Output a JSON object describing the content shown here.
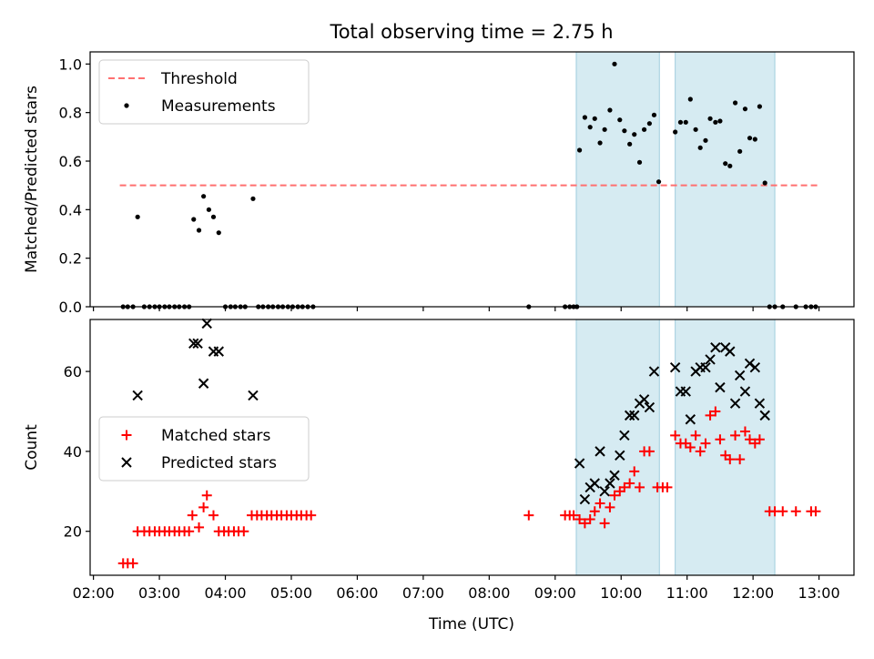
{
  "figure": {
    "title": "Total observing time = 2.75 h",
    "xlabel": "Time (UTC)",
    "xticks": [
      "02:00",
      "03:00",
      "04:00",
      "05:00",
      "06:00",
      "07:00",
      "08:00",
      "09:00",
      "10:00",
      "11:00",
      "12:00",
      "13:00"
    ]
  },
  "chart_data": [
    {
      "type": "scatter",
      "ylabel": "Matched/Predicted stars",
      "xlim": [
        1.95,
        13.53
      ],
      "ylim": [
        0,
        1.05
      ],
      "yticks": [
        "0.0",
        "0.2",
        "0.4",
        "0.6",
        "0.8",
        "1.0"
      ],
      "legend": "upper-left",
      "highlight_bands": [
        [
          9.32,
          10.58
        ],
        [
          10.82,
          12.33
        ]
      ],
      "threshold": {
        "name": "Threshold",
        "value": 0.5,
        "x_range": [
          2.4,
          12.98
        ],
        "color": "#ff7070",
        "style": "dashed"
      },
      "series": [
        {
          "name": "Measurements",
          "color": "#000000",
          "marker": "dot",
          "points": [
            [
              2.45,
              0
            ],
            [
              2.52,
              0
            ],
            [
              2.6,
              0
            ],
            [
              2.67,
              0.37
            ],
            [
              2.77,
              0
            ],
            [
              2.85,
              0
            ],
            [
              2.93,
              0
            ],
            [
              3.0,
              0
            ],
            [
              3.08,
              0
            ],
            [
              3.15,
              0
            ],
            [
              3.23,
              0
            ],
            [
              3.3,
              0
            ],
            [
              3.38,
              0
            ],
            [
              3.45,
              0
            ],
            [
              3.52,
              0.36
            ],
            [
              3.6,
              0.315
            ],
            [
              3.67,
              0.455
            ],
            [
              3.75,
              0.4
            ],
            [
              3.82,
              0.37
            ],
            [
              3.9,
              0.305
            ],
            [
              4.0,
              0
            ],
            [
              4.08,
              0
            ],
            [
              4.15,
              0
            ],
            [
              4.23,
              0
            ],
            [
              4.3,
              0
            ],
            [
              4.42,
              0.445
            ],
            [
              4.5,
              0
            ],
            [
              4.57,
              0
            ],
            [
              4.65,
              0
            ],
            [
              4.72,
              0
            ],
            [
              4.8,
              0
            ],
            [
              4.87,
              0
            ],
            [
              4.95,
              0
            ],
            [
              5.02,
              0
            ],
            [
              5.1,
              0
            ],
            [
              5.17,
              0
            ],
            [
              5.25,
              0
            ],
            [
              5.33,
              0
            ],
            [
              8.6,
              0
            ],
            [
              9.15,
              0
            ],
            [
              9.22,
              0
            ],
            [
              9.28,
              0
            ],
            [
              9.33,
              0
            ],
            [
              9.37,
              0.645
            ],
            [
              9.45,
              0.78
            ],
            [
              9.53,
              0.74
            ],
            [
              9.6,
              0.775
            ],
            [
              9.68,
              0.675
            ],
            [
              9.75,
              0.73
            ],
            [
              9.83,
              0.81
            ],
            [
              9.9,
              1.0
            ],
            [
              9.98,
              0.77
            ],
            [
              10.05,
              0.725
            ],
            [
              10.13,
              0.67
            ],
            [
              10.2,
              0.71
            ],
            [
              10.28,
              0.595
            ],
            [
              10.35,
              0.73
            ],
            [
              10.43,
              0.755
            ],
            [
              10.5,
              0.79
            ],
            [
              10.57,
              0.515
            ],
            [
              10.82,
              0.72
            ],
            [
              10.9,
              0.76
            ],
            [
              10.98,
              0.76
            ],
            [
              11.05,
              0.855
            ],
            [
              11.13,
              0.73
            ],
            [
              11.2,
              0.655
            ],
            [
              11.28,
              0.685
            ],
            [
              11.35,
              0.775
            ],
            [
              11.43,
              0.76
            ],
            [
              11.5,
              0.765
            ],
            [
              11.58,
              0.59
            ],
            [
              11.65,
              0.58
            ],
            [
              11.73,
              0.84
            ],
            [
              11.8,
              0.64
            ],
            [
              11.88,
              0.815
            ],
            [
              11.95,
              0.695
            ],
            [
              12.03,
              0.69
            ],
            [
              12.1,
              0.825
            ],
            [
              12.18,
              0.51
            ],
            [
              12.25,
              0
            ],
            [
              12.33,
              0
            ],
            [
              12.45,
              0
            ],
            [
              12.65,
              0
            ],
            [
              12.8,
              0
            ],
            [
              12.88,
              0
            ],
            [
              12.95,
              0
            ]
          ]
        }
      ]
    },
    {
      "type": "scatter",
      "ylabel": "Count",
      "xlim": [
        1.95,
        13.53
      ],
      "ylim": [
        9,
        73
      ],
      "yticks": [
        "20",
        "40",
        "60"
      ],
      "legend": "center-left",
      "highlight_bands": [
        [
          9.32,
          10.58
        ],
        [
          10.82,
          12.33
        ]
      ],
      "series": [
        {
          "name": "Matched stars",
          "color": "#ff0000",
          "marker": "plus",
          "points": [
            [
              2.45,
              12
            ],
            [
              2.52,
              12
            ],
            [
              2.6,
              12
            ],
            [
              2.67,
              20
            ],
            [
              2.77,
              20
            ],
            [
              2.85,
              20
            ],
            [
              2.93,
              20
            ],
            [
              3.0,
              20
            ],
            [
              3.08,
              20
            ],
            [
              3.15,
              20
            ],
            [
              3.23,
              20
            ],
            [
              3.3,
              20
            ],
            [
              3.38,
              20
            ],
            [
              3.45,
              20
            ],
            [
              3.5,
              24
            ],
            [
              3.6,
              21
            ],
            [
              3.67,
              26
            ],
            [
              3.72,
              29
            ],
            [
              3.82,
              24
            ],
            [
              3.9,
              20
            ],
            [
              3.98,
              20
            ],
            [
              4.05,
              20
            ],
            [
              4.13,
              20
            ],
            [
              4.2,
              20
            ],
            [
              4.28,
              20
            ],
            [
              4.4,
              24
            ],
            [
              4.48,
              24
            ],
            [
              4.55,
              24
            ],
            [
              4.63,
              24
            ],
            [
              4.7,
              24
            ],
            [
              4.78,
              24
            ],
            [
              4.85,
              24
            ],
            [
              4.93,
              24
            ],
            [
              5.0,
              24
            ],
            [
              5.08,
              24
            ],
            [
              5.15,
              24
            ],
            [
              5.23,
              24
            ],
            [
              5.3,
              24
            ],
            [
              8.6,
              24
            ],
            [
              9.15,
              24
            ],
            [
              9.22,
              24
            ],
            [
              9.28,
              24
            ],
            [
              9.37,
              23
            ],
            [
              9.45,
              22
            ],
            [
              9.53,
              23
            ],
            [
              9.6,
              25
            ],
            [
              9.68,
              27
            ],
            [
              9.75,
              22
            ],
            [
              9.83,
              26
            ],
            [
              9.9,
              29
            ],
            [
              9.98,
              30
            ],
            [
              10.05,
              31
            ],
            [
              10.13,
              32
            ],
            [
              10.2,
              35
            ],
            [
              10.28,
              31
            ],
            [
              10.35,
              40
            ],
            [
              10.43,
              40
            ],
            [
              10.55,
              31
            ],
            [
              10.63,
              31
            ],
            [
              10.7,
              31
            ],
            [
              10.82,
              44
            ],
            [
              10.9,
              42
            ],
            [
              10.98,
              42
            ],
            [
              11.05,
              41
            ],
            [
              11.13,
              44
            ],
            [
              11.2,
              40
            ],
            [
              11.28,
              42
            ],
            [
              11.35,
              49
            ],
            [
              11.43,
              50
            ],
            [
              11.5,
              43
            ],
            [
              11.58,
              39
            ],
            [
              11.65,
              38
            ],
            [
              11.73,
              44
            ],
            [
              11.8,
              38
            ],
            [
              11.88,
              45
            ],
            [
              11.95,
              43
            ],
            [
              12.03,
              42
            ],
            [
              12.1,
              43
            ],
            [
              12.25,
              25
            ],
            [
              12.33,
              25
            ],
            [
              12.45,
              25
            ],
            [
              12.65,
              25
            ],
            [
              12.88,
              25
            ],
            [
              12.95,
              25
            ]
          ]
        },
        {
          "name": "Predicted stars",
          "color": "#000000",
          "marker": "x",
          "points": [
            [
              2.67,
              54
            ],
            [
              3.52,
              67
            ],
            [
              3.58,
              67
            ],
            [
              3.67,
              57
            ],
            [
              3.72,
              72
            ],
            [
              3.82,
              65
            ],
            [
              3.9,
              65
            ],
            [
              4.42,
              54
            ],
            [
              9.37,
              37
            ],
            [
              9.45,
              28
            ],
            [
              9.53,
              31
            ],
            [
              9.6,
              32
            ],
            [
              9.68,
              40
            ],
            [
              9.75,
              30
            ],
            [
              9.83,
              32
            ],
            [
              9.9,
              34
            ],
            [
              9.98,
              39
            ],
            [
              10.05,
              44
            ],
            [
              10.13,
              49
            ],
            [
              10.2,
              49
            ],
            [
              10.28,
              52
            ],
            [
              10.35,
              53
            ],
            [
              10.43,
              51
            ],
            [
              10.5,
              60
            ],
            [
              10.82,
              61
            ],
            [
              10.9,
              55
            ],
            [
              10.98,
              55
            ],
            [
              11.05,
              48
            ],
            [
              11.13,
              60
            ],
            [
              11.2,
              61
            ],
            [
              11.28,
              61
            ],
            [
              11.35,
              63
            ],
            [
              11.43,
              66
            ],
            [
              11.5,
              56
            ],
            [
              11.58,
              66
            ],
            [
              11.65,
              65
            ],
            [
              11.73,
              52
            ],
            [
              11.8,
              59
            ],
            [
              11.88,
              55
            ],
            [
              11.95,
              62
            ],
            [
              12.03,
              61
            ],
            [
              12.1,
              52
            ],
            [
              12.18,
              49
            ]
          ]
        }
      ]
    }
  ]
}
